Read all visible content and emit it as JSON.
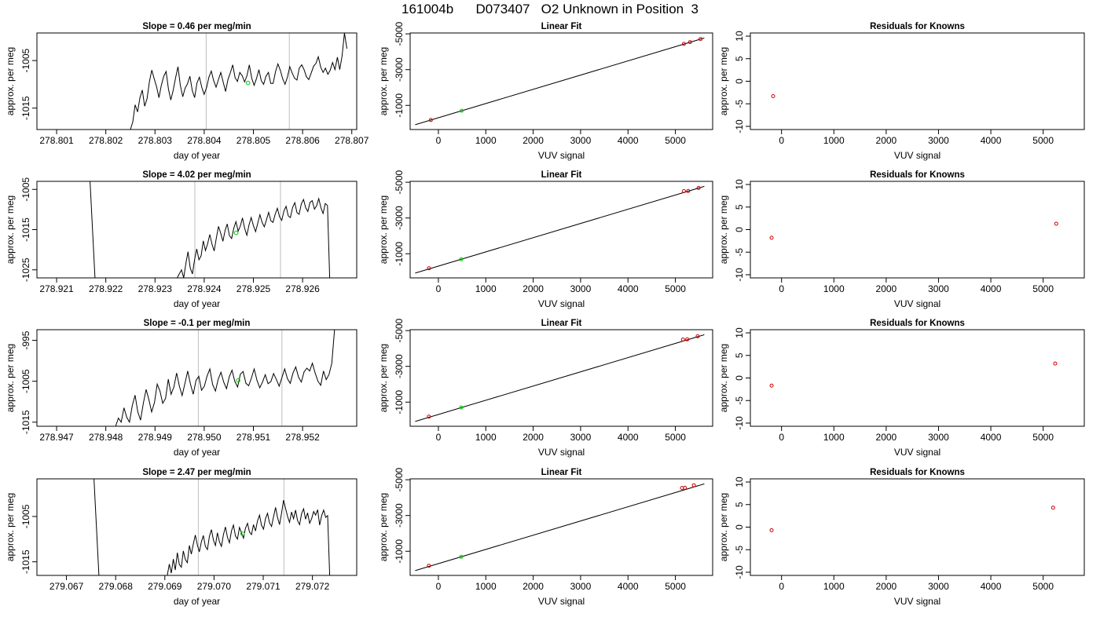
{
  "page_title": "161004b      D073407   O2 Unknown in Position  3",
  "colors": {
    "axis": "#000000",
    "trace": "#000000",
    "vline": "#bebebe",
    "green": "#00cc00",
    "red": "#cc0000"
  },
  "chart_data": [
    {
      "type": "line",
      "title": "Slope =  0.46  per meg/min",
      "xlabel": "day of year",
      "ylabel": "approx. per meg",
      "xlim": [
        278.8006,
        278.8071
      ],
      "ylim": [
        -1019.5,
        -999.2
      ],
      "x_ticks": [
        "278.801",
        "278.802",
        "278.803",
        "278.804",
        "278.805",
        "278.806",
        "278.807"
      ],
      "y_ticks": [
        "-1005",
        "-1015"
      ],
      "vlines": [
        278.80404,
        278.80573
      ],
      "green_point": {
        "x": 278.80489,
        "y": -1009.7
      },
      "series": [
        {
          "x_start": 278.8025,
          "x_end": 278.8069,
          "values": [
            -1019.5,
            -1017.9,
            -1014.3,
            -1015.8,
            -1012.8,
            -1011.2,
            -1014.6,
            -1013.0,
            -1009.4,
            -1007.0,
            -1008.8,
            -1010.5,
            -1012.8,
            -1010.2,
            -1008.3,
            -1007.3,
            -1011.0,
            -1013.3,
            -1011.2,
            -1008.6,
            -1006.3,
            -1010.2,
            -1012.6,
            -1010.8,
            -1009.9,
            -1008.3,
            -1011.3,
            -1012.8,
            -1009.7,
            -1008.5,
            -1010.6,
            -1012.1,
            -1010.7,
            -1008.5,
            -1007.2,
            -1009.2,
            -1010.6,
            -1009.0,
            -1007.5,
            -1009.5,
            -1011.5,
            -1009.0,
            -1007.6,
            -1005.9,
            -1008.6,
            -1009.4,
            -1007.5,
            -1008.2,
            -1009.5,
            -1008.2,
            -1005.9,
            -1008.7,
            -1010.2,
            -1008.8,
            -1006.9,
            -1009.2,
            -1010.0,
            -1008.3,
            -1007.5,
            -1009.8,
            -1009.8,
            -1007.3,
            -1005.7,
            -1007.0,
            -1008.8,
            -1010.0,
            -1008.5,
            -1006.3,
            -1007.6,
            -1008.7,
            -1009.1,
            -1006.6,
            -1005.9,
            -1006.9,
            -1008.4,
            -1009.0,
            -1007.6,
            -1006.2,
            -1005.6,
            -1004.2,
            -1006.4,
            -1007.5,
            -1006.6,
            -1007.9,
            -1007.0,
            -1005.4,
            -1006.9,
            -1004.3,
            -1006.9,
            -1004.0,
            -999.2,
            -1002.5
          ]
        }
      ]
    },
    {
      "type": "scatter",
      "title": "Linear Fit",
      "xlabel": "VUV signal",
      "ylabel": "approx. per meg",
      "xlim": [
        -596,
        5786
      ],
      "ylim": [
        350,
        -5050
      ],
      "x_ticks": [
        0,
        1000,
        2000,
        3000,
        4000,
        5000
      ],
      "y_ticks": [
        -1000,
        -3000,
        -5000
      ],
      "fit_line": {
        "x": [
          -490,
          5610
        ],
        "y": [
          80,
          -4770
        ]
      },
      "points_red": [
        {
          "x": -160,
          "y": -180
        },
        {
          "x": 5180,
          "y": -4440
        },
        {
          "x": 5310,
          "y": -4540
        },
        {
          "x": 5530,
          "y": -4710
        }
      ],
      "points_green": [
        {
          "x": 490,
          "y": -700
        }
      ]
    },
    {
      "type": "scatter",
      "title": "Residuals for Knowns",
      "xlabel": "VUV signal",
      "ylabel": "approx. per meg",
      "xlim": [
        -596,
        5786
      ],
      "ylim": [
        -10.7,
        10.7
      ],
      "x_ticks": [
        0,
        1000,
        2000,
        3000,
        4000,
        5000
      ],
      "y_ticks": [
        10,
        5,
        0,
        -5,
        -10
      ],
      "points_red": [
        {
          "x": -160,
          "y": -3.3
        }
      ]
    },
    {
      "type": "line",
      "title": "Slope =  4.02  per meg/min",
      "xlabel": "day of year",
      "ylabel": "approx. per meg",
      "xlim": [
        278.9206,
        278.9271
      ],
      "ylim": [
        -1027.0,
        -1003.0
      ],
      "x_ticks": [
        "278.921",
        "278.922",
        "278.923",
        "278.924",
        "278.925",
        "278.926"
      ],
      "y_ticks": [
        "-1005",
        "-1015",
        "-1025"
      ],
      "vlines": [
        278.92381,
        278.92555
      ],
      "green_point": {
        "x": 278.92465,
        "y": -1015.8
      },
      "series": [
        {
          "x_start": 278.92168,
          "x_end": 278.92178,
          "values": [
            -1003.0,
            -1027.0
          ]
        },
        {
          "x_start": 278.92345,
          "x_end": 278.92655,
          "values": [
            -1027.0,
            -1026.0,
            -1025.0,
            -1027.0,
            -1023.5,
            -1020.5,
            -1024.5,
            -1026.0,
            -1022.5,
            -1019.8,
            -1022.5,
            -1021.5,
            -1017.8,
            -1020.2,
            -1018.5,
            -1016.2,
            -1018.6,
            -1020.3,
            -1017.0,
            -1014.2,
            -1015.9,
            -1017.9,
            -1015.2,
            -1013.6,
            -1016.5,
            -1017.2,
            -1014.6,
            -1013.0,
            -1015.4,
            -1014.1,
            -1012.1,
            -1014.7,
            -1016.4,
            -1013.8,
            -1012.0,
            -1014.0,
            -1015.5,
            -1013.4,
            -1011.3,
            -1013.2,
            -1014.3,
            -1012.6,
            -1010.7,
            -1012.8,
            -1013.2,
            -1011.2,
            -1009.7,
            -1011.8,
            -1012.7,
            -1010.4,
            -1009.2,
            -1011.6,
            -1012.0,
            -1009.5,
            -1008.3,
            -1010.8,
            -1011.2,
            -1008.6,
            -1007.5,
            -1009.6,
            -1010.5,
            -1008.2,
            -1007.8,
            -1009.9,
            -1009.1,
            -1007.3,
            -1009.6,
            -1011.0,
            -1008.5,
            -1009.0,
            -1027.0
          ]
        }
      ]
    },
    {
      "type": "scatter",
      "title": "Linear Fit",
      "xlabel": "VUV signal",
      "ylabel": "approx. per meg",
      "xlim": [
        -596,
        5786
      ],
      "ylim": [
        350,
        -5050
      ],
      "x_ticks": [
        0,
        1000,
        2000,
        3000,
        4000,
        5000
      ],
      "y_ticks": [
        -1000,
        -3000,
        -5000
      ],
      "fit_line": {
        "x": [
          -490,
          5610
        ],
        "y": [
          80,
          -4770
        ]
      },
      "points_red": [
        {
          "x": -200,
          "y": -190
        },
        {
          "x": 5180,
          "y": -4500
        },
        {
          "x": 5270,
          "y": -4510
        },
        {
          "x": 5490,
          "y": -4680
        }
      ],
      "points_green": [
        {
          "x": 480,
          "y": -690
        }
      ]
    },
    {
      "type": "scatter",
      "title": "Residuals for Knowns",
      "xlabel": "VUV signal",
      "ylabel": "approx. per meg",
      "xlim": [
        -596,
        5786
      ],
      "ylim": [
        -10.7,
        10.7
      ],
      "x_ticks": [
        0,
        1000,
        2000,
        3000,
        4000,
        5000
      ],
      "y_ticks": [
        10,
        5,
        0,
        -5,
        -10
      ],
      "points_red": [
        {
          "x": -190,
          "y": -1.8
        },
        {
          "x": 5250,
          "y": 1.3
        }
      ]
    },
    {
      "type": "line",
      "title": "Slope =  -0.1  per meg/min",
      "xlabel": "day of year",
      "ylabel": "approx. per meg",
      "xlim": [
        278.9466,
        278.9531
      ],
      "ylim": [
        -1016.0,
        -992.4
      ],
      "x_ticks": [
        "278.947",
        "278.948",
        "278.949",
        "278.950",
        "278.951",
        "278.952"
      ],
      "y_ticks": [
        "-995",
        "-1005",
        "-1015"
      ],
      "vlines": [
        278.94988,
        278.95158
      ],
      "green_point": {
        "x": 278.95069,
        "y": -1004.8
      },
      "series": [
        {
          "x_start": 278.9482,
          "x_end": 278.95265,
          "values": [
            -1016.0,
            -1014.0,
            -1015.0,
            -1011.5,
            -1013.8,
            -1015.0,
            -1011.0,
            -1008.4,
            -1012.5,
            -1014.5,
            -1010.3,
            -1007.0,
            -1009.5,
            -1012.5,
            -1010.2,
            -1005.7,
            -1007.4,
            -1010.4,
            -1009.2,
            -1004.5,
            -1008.2,
            -1006.4,
            -1003.0,
            -1006.2,
            -1008.5,
            -1005.5,
            -1002.5,
            -1005.7,
            -1008.2,
            -1004.8,
            -1003.8,
            -1007.2,
            -1006.2,
            -1003.7,
            -1002.0,
            -1005.8,
            -1007.4,
            -1004.5,
            -1002.8,
            -1005.2,
            -1006.8,
            -1003.9,
            -1002.3,
            -1005.0,
            -1006.4,
            -1003.3,
            -1002.6,
            -1005.5,
            -1006.1,
            -1004.2,
            -1002.0,
            -1004.8,
            -1006.6,
            -1005.2,
            -1003.4,
            -1005.6,
            -1005.1,
            -1003.1,
            -1004.6,
            -1006.2,
            -1004.1,
            -1002.0,
            -1004.4,
            -1005.5,
            -1003.0,
            -1001.5,
            -1004.0,
            -1005.2,
            -1002.7,
            -1001.8,
            -1002.5,
            -1000.6,
            -1003.0,
            -1005.0,
            -1006.0,
            -1002.5,
            -1004.6,
            -1003.3,
            -1000.6,
            -992.4
          ]
        }
      ]
    },
    {
      "type": "scatter",
      "title": "Linear Fit",
      "xlabel": "VUV signal",
      "ylabel": "approx. per meg",
      "xlim": [
        -596,
        5786
      ],
      "ylim": [
        350,
        -5050
      ],
      "x_ticks": [
        0,
        1000,
        2000,
        3000,
        4000,
        5000
      ],
      "y_ticks": [
        -1000,
        -3000,
        -5000
      ],
      "fit_line": {
        "x": [
          -490,
          5610
        ],
        "y": [
          80,
          -4770
        ]
      },
      "points_red": [
        {
          "x": -200,
          "y": -190
        },
        {
          "x": 5160,
          "y": -4500
        },
        {
          "x": 5250,
          "y": -4510
        },
        {
          "x": 5470,
          "y": -4680
        }
      ],
      "points_green": [
        {
          "x": 480,
          "y": -700
        }
      ]
    },
    {
      "type": "scatter",
      "title": "Residuals for Knowns",
      "xlabel": "VUV signal",
      "ylabel": "approx. per meg",
      "xlim": [
        -596,
        5786
      ],
      "ylim": [
        -10.7,
        10.7
      ],
      "x_ticks": [
        0,
        1000,
        2000,
        3000,
        4000,
        5000
      ],
      "y_ticks": [
        10,
        5,
        0,
        -5,
        -10
      ],
      "points_red": [
        {
          "x": -190,
          "y": -1.7
        },
        {
          "x": 5230,
          "y": 3.2
        }
      ]
    },
    {
      "type": "line",
      "title": "Slope =  2.47  per meg/min",
      "xlabel": "day of year",
      "ylabel": "approx. per meg",
      "xlim": [
        279.0664,
        279.0729
      ],
      "ylim": [
        -1018.0,
        -996.7
      ],
      "x_ticks": [
        "279.067",
        "279.068",
        "279.069",
        "279.070",
        "279.071",
        "279.072"
      ],
      "y_ticks": [
        "-1005",
        "-1015"
      ],
      "vlines": [
        279.06968,
        279.07142
      ],
      "green_point": {
        "x": 279.07058,
        "y": -1008.8
      },
      "series": [
        {
          "x_start": 279.06756,
          "x_end": 279.06766,
          "values": [
            -996.7,
            -1018.0
          ]
        },
        {
          "x_start": 279.06905,
          "x_end": 279.07235,
          "values": [
            -1018.0,
            -1015.5,
            -1017.5,
            -1014.4,
            -1016.8,
            -1013.0,
            -1015.6,
            -1016.2,
            -1012.6,
            -1014.5,
            -1015.2,
            -1011.4,
            -1013.3,
            -1011.0,
            -1009.1,
            -1011.3,
            -1012.8,
            -1010.6,
            -1009.2,
            -1011.6,
            -1012.3,
            -1009.4,
            -1007.9,
            -1010.2,
            -1011.4,
            -1008.6,
            -1010.6,
            -1011.6,
            -1009.0,
            -1007.3,
            -1009.6,
            -1010.8,
            -1008.2,
            -1006.9,
            -1009.3,
            -1010.0,
            -1007.4,
            -1008.6,
            -1009.8,
            -1007.6,
            -1006.5,
            -1008.4,
            -1009.0,
            -1006.8,
            -1008.2,
            -1006.0,
            -1004.7,
            -1006.9,
            -1007.8,
            -1005.5,
            -1004.3,
            -1006.4,
            -1007.2,
            -1005.1,
            -1003.0,
            -1005.2,
            -1006.8,
            -1004.3,
            -1001.4,
            -1003.2,
            -1005.0,
            -1006.3,
            -1004.0,
            -1005.5,
            -1003.6,
            -1005.9,
            -1006.8,
            -1004.4,
            -1003.3,
            -1005.6,
            -1004.2,
            -1006.5,
            -1005.5,
            -1003.9,
            -1004.7,
            -1003.5,
            -1006.9,
            -1004.8,
            -1003.6,
            -1005.2,
            -1004.8,
            -1018.0
          ]
        }
      ]
    },
    {
      "type": "scatter",
      "title": "Linear Fit",
      "xlabel": "VUV signal",
      "ylabel": "approx. per meg",
      "xlim": [
        -596,
        5786
      ],
      "ylim": [
        350,
        -5050
      ],
      "x_ticks": [
        0,
        1000,
        2000,
        3000,
        4000,
        5000
      ],
      "y_ticks": [
        -1000,
        -3000,
        -5000
      ],
      "fit_line": {
        "x": [
          -490,
          5610
        ],
        "y": [
          80,
          -4770
        ]
      },
      "points_red": [
        {
          "x": -200,
          "y": -190
        },
        {
          "x": 5140,
          "y": -4540
        },
        {
          "x": 5200,
          "y": -4550
        },
        {
          "x": 5390,
          "y": -4690
        }
      ],
      "points_green": [
        {
          "x": 480,
          "y": -690
        }
      ]
    },
    {
      "type": "scatter",
      "title": "Residuals for Knowns",
      "xlabel": "VUV signal",
      "ylabel": "approx. per meg",
      "xlim": [
        -596,
        5786
      ],
      "ylim": [
        -10.7,
        10.7
      ],
      "x_ticks": [
        0,
        1000,
        2000,
        3000,
        4000,
        5000
      ],
      "y_ticks": [
        10,
        5,
        0,
        -5,
        -10
      ],
      "points_red": [
        {
          "x": -190,
          "y": -0.7
        },
        {
          "x": 5190,
          "y": 4.3
        }
      ]
    }
  ]
}
